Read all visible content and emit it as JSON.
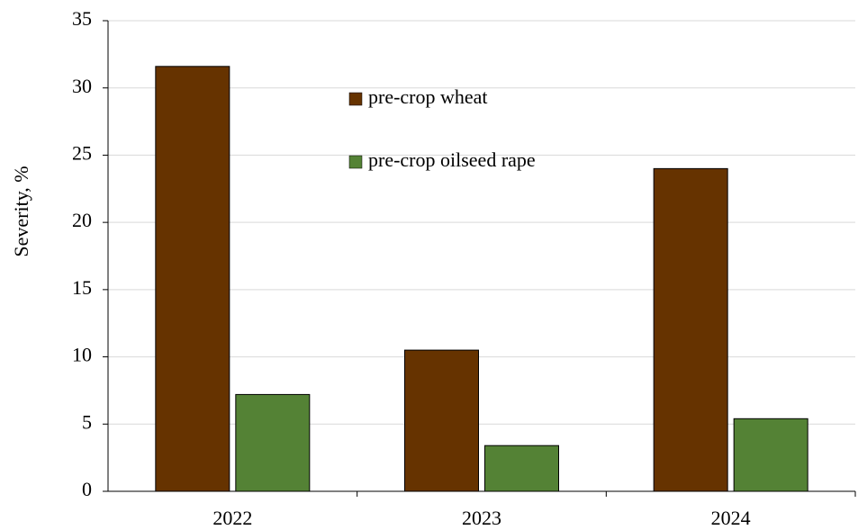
{
  "chart_data": {
    "type": "bar",
    "y_label": "Severity, %",
    "categories": [
      "2022",
      "2023",
      "2024"
    ],
    "series": [
      {
        "name": "pre-crop wheat",
        "color": "#663300",
        "values": [
          31.6,
          10.5,
          24
        ]
      },
      {
        "name": "pre-crop oilseed rape",
        "color": "#548235",
        "values": [
          7.2,
          3.4,
          5.4
        ]
      }
    ],
    "ylim": [
      0,
      35
    ],
    "yticks": [
      0,
      5,
      10,
      15,
      20,
      25,
      30,
      35
    ],
    "grid": true,
    "legend": "top"
  }
}
